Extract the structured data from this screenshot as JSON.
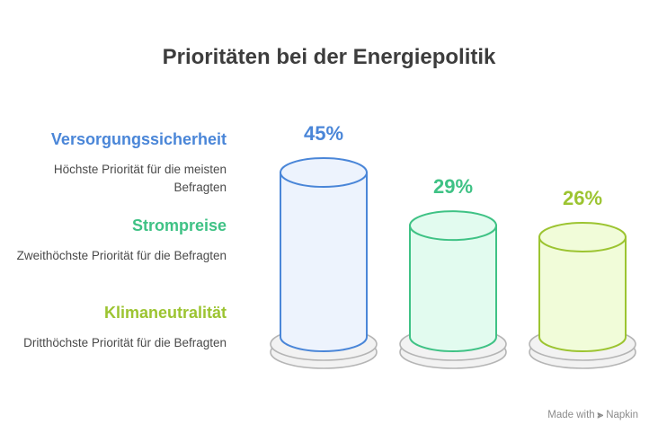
{
  "title": "Prioritäten bei der Energiepolitik",
  "chart_data": {
    "type": "bar",
    "categories": [
      "Versorgungssicherheit",
      "Strompreise",
      "Klimaneutralität"
    ],
    "values": [
      45,
      29,
      26
    ],
    "value_labels": [
      "45%",
      "29%",
      "26%"
    ],
    "descriptions": [
      "Höchste Priorität für die meisten Befragten",
      "Zweithöchste Priorität für die Befragten",
      "Dritthöchste Priorität für die Befragten"
    ],
    "colors": {
      "stroke": [
        "#4a86d8",
        "#3fc285",
        "#9cc431"
      ],
      "fill": [
        "#edf3fd",
        "#e2fbef",
        "#f1fcd9"
      ]
    },
    "base_color": "#b5b5b5"
  },
  "footer": {
    "made_with": "Made with",
    "brand": "Napkin"
  }
}
